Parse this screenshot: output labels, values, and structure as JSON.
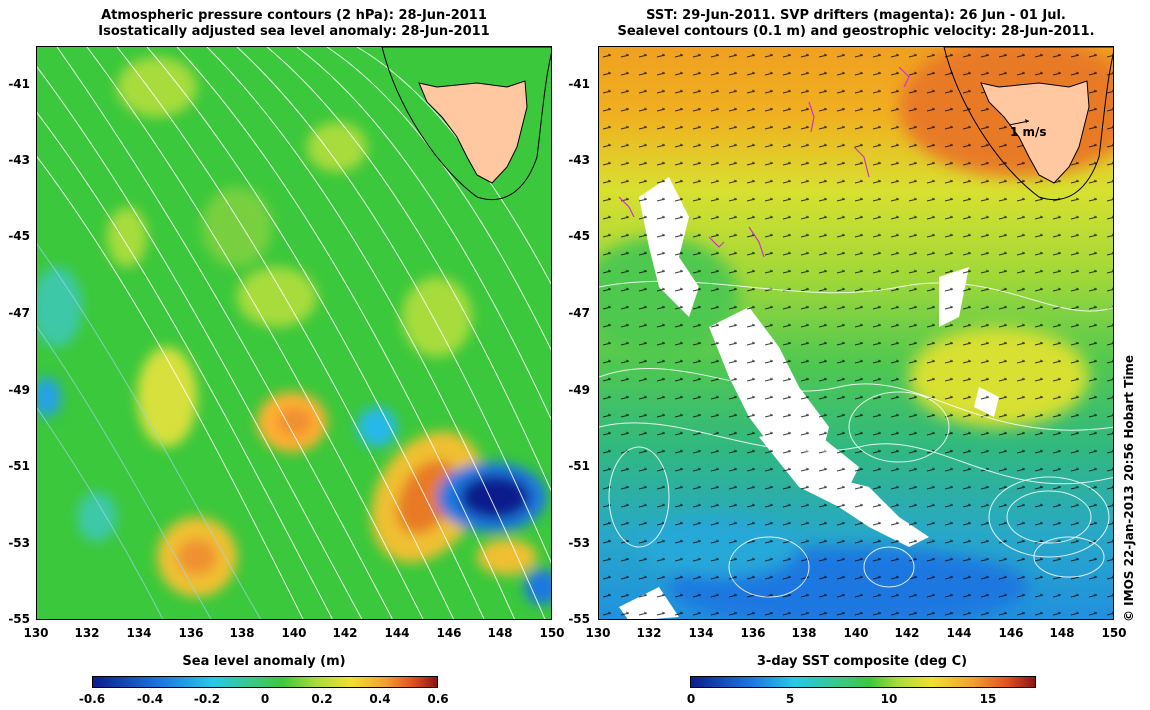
{
  "left_panel": {
    "title_line1": "Atmospheric pressure contours (2 hPa): 28-Jun-2011",
    "title_line2": "Isostatically adjusted sea level anomaly: 28-Jun-2011",
    "colorbar_label": "Sea level anomaly (m)",
    "colorbar_ticks": [
      "-0.6",
      "-0.4",
      "-0.2",
      "0",
      "0.2",
      "0.4",
      "0.6"
    ],
    "colorbar_range": [
      -0.6,
      0.6
    ]
  },
  "right_panel": {
    "title_line1": "SST: 29-Jun-2011. SVP drifters (magenta): 26 Jun - 01 Jul.",
    "title_line2": "Sealevel contours (0.1 m) and geostrophic velocity: 28-Jun-2011.",
    "colorbar_label": "3-day SST composite (deg C)",
    "colorbar_ticks": [
      "0",
      "5",
      "10",
      "15"
    ],
    "colorbar_range": [
      0,
      17.5
    ],
    "vector_scale_label": "1 m/s"
  },
  "axes": {
    "y_ticks": [
      "-41",
      "-43",
      "-45",
      "-47",
      "-49",
      "-51",
      "-53",
      "-55"
    ],
    "x_ticks": [
      "130",
      "132",
      "134",
      "136",
      "138",
      "140",
      "142",
      "144",
      "146",
      "148",
      "150"
    ],
    "lon_range": [
      130,
      150
    ],
    "lat_range": [
      -55,
      -40
    ]
  },
  "credit": "© IMOS 22-Jan-2013 20:56 Hobart Time",
  "colors": {
    "land": "#ffc8a0",
    "contour": "#ffffff",
    "drifter": "#cc33cc"
  }
}
